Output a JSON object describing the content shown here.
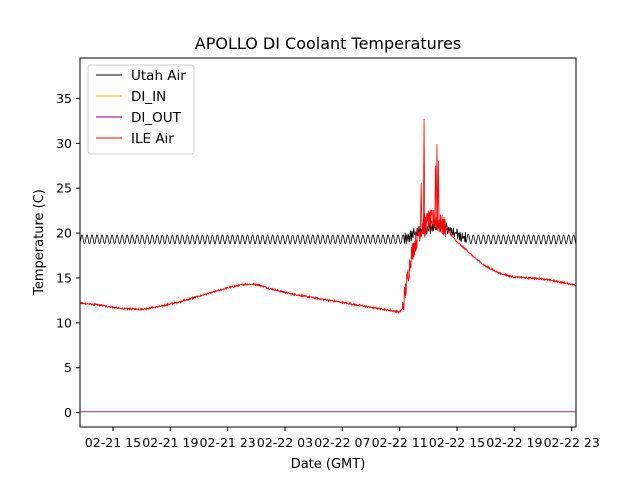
{
  "chart_data": {
    "type": "line",
    "title": "APOLLO DI Coolant Temperatures",
    "xlabel": "Date (GMT)",
    "ylabel": "Temperature (C)",
    "x_unit": "hours since 02-21 11:00 GMT",
    "xlim": [
      1.7,
      36.3
    ],
    "ylim": [
      -1.6,
      39.5
    ],
    "x_ticks": [
      {
        "x": 4,
        "label": "02-21 15"
      },
      {
        "x": 8,
        "label": "02-21 19"
      },
      {
        "x": 12,
        "label": "02-21 23"
      },
      {
        "x": 16,
        "label": "02-22 03"
      },
      {
        "x": 20,
        "label": "02-22 07"
      },
      {
        "x": 24,
        "label": "02-22 11"
      },
      {
        "x": 28,
        "label": "02-22 15"
      },
      {
        "x": 32,
        "label": "02-22 19"
      },
      {
        "x": 36,
        "label": "02-22 23"
      }
    ],
    "y_ticks": [
      0,
      5,
      10,
      15,
      20,
      25,
      30,
      35
    ],
    "legend_position": "top-left",
    "series": [
      {
        "name": "Utah Air",
        "color": "#000000",
        "style": "oscillating",
        "amplitude": 0.5,
        "period": 0.35,
        "points": [
          [
            1.7,
            19.3
          ],
          [
            24.5,
            19.3
          ],
          [
            25.0,
            20.0
          ],
          [
            26.0,
            20.5
          ],
          [
            27.0,
            20.8
          ],
          [
            27.5,
            20.3
          ],
          [
            28.0,
            19.9
          ],
          [
            28.5,
            19.5
          ],
          [
            29.0,
            19.3
          ],
          [
            36.3,
            19.3
          ]
        ]
      },
      {
        "name": "DI_IN",
        "color": "#e6b800",
        "style": "flat",
        "points": [
          [
            1.7,
            0.1
          ],
          [
            36.3,
            0.1
          ]
        ]
      },
      {
        "name": "DI_OUT",
        "color": "#800080",
        "style": "flat",
        "points": [
          [
            1.7,
            0.1
          ],
          [
            36.3,
            0.1
          ]
        ]
      },
      {
        "name": "ILE Air",
        "color": "#ff0000",
        "style": "noisy",
        "points": [
          [
            1.7,
            12.2
          ],
          [
            3.0,
            12.0
          ],
          [
            4.5,
            11.6
          ],
          [
            6.0,
            11.5
          ],
          [
            7.5,
            11.9
          ],
          [
            9.0,
            12.5
          ],
          [
            10.5,
            13.2
          ],
          [
            12.0,
            13.9
          ],
          [
            13.2,
            14.3
          ],
          [
            14.0,
            14.3
          ],
          [
            15.0,
            13.8
          ],
          [
            16.5,
            13.2
          ],
          [
            18.0,
            12.8
          ],
          [
            19.5,
            12.4
          ],
          [
            21.0,
            12.0
          ],
          [
            22.5,
            11.6
          ],
          [
            24.0,
            11.2
          ],
          [
            24.2,
            11.6
          ],
          [
            24.5,
            14.5
          ],
          [
            24.8,
            17.5
          ],
          [
            25.1,
            19.0
          ],
          [
            25.4,
            20.2
          ],
          [
            25.7,
            21.0
          ],
          [
            26.0,
            21.3
          ],
          [
            26.4,
            21.5
          ],
          [
            26.8,
            21.0
          ],
          [
            27.2,
            20.6
          ],
          [
            27.6,
            19.8
          ],
          [
            28.0,
            19.0
          ],
          [
            28.6,
            18.2
          ],
          [
            29.2,
            17.3
          ],
          [
            30.0,
            16.3
          ],
          [
            31.0,
            15.5
          ],
          [
            32.0,
            15.1
          ],
          [
            33.0,
            15.0
          ],
          [
            34.0,
            14.9
          ],
          [
            35.0,
            14.6
          ],
          [
            36.3,
            14.2
          ]
        ],
        "spikes": [
          [
            25.5,
            25.6
          ],
          [
            25.7,
            32.7
          ],
          [
            25.75,
            19.5
          ],
          [
            26.0,
            22.5
          ],
          [
            26.2,
            21.0
          ],
          [
            26.5,
            27.5
          ],
          [
            26.6,
            29.9
          ],
          [
            26.7,
            28.0
          ],
          [
            26.8,
            21.5
          ]
        ]
      }
    ]
  }
}
